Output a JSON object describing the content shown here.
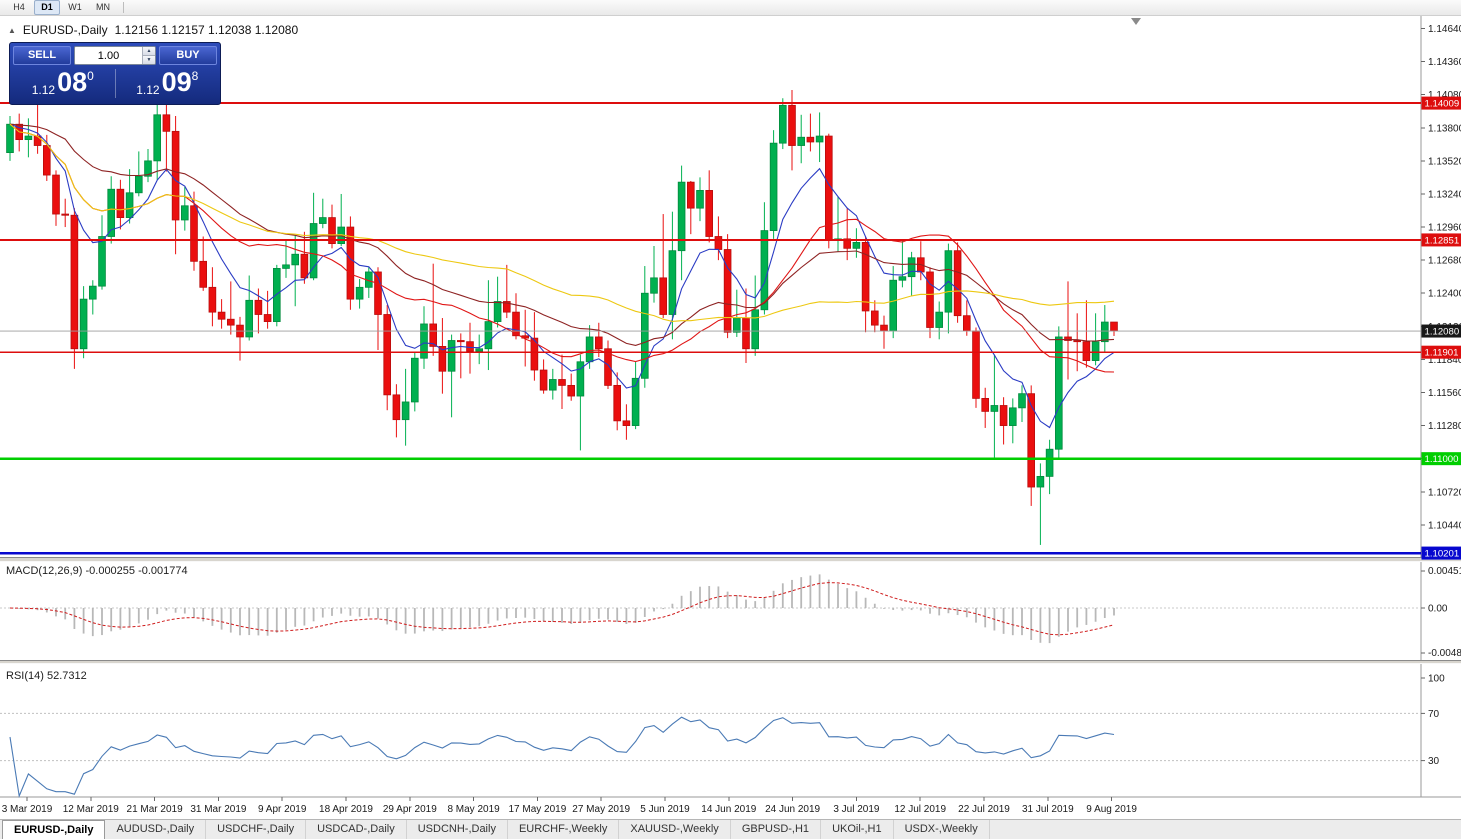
{
  "toolbar": {
    "periods": [
      {
        "label": "H4",
        "active": false
      },
      {
        "label": "D1",
        "active": true
      },
      {
        "label": "W1",
        "active": false
      },
      {
        "label": "MN",
        "active": false
      }
    ]
  },
  "chart_header": {
    "collapse_glyph": "▲",
    "title": "EURUSD-,Daily",
    "quotes": "1.12156 1.12157 1.12038 1.12080"
  },
  "trade_panel": {
    "sell_label": "SELL",
    "buy_label": "BUY",
    "volume": "1.00",
    "sell_price": {
      "prefix": "1.12",
      "big": "08",
      "sup": "0"
    },
    "buy_price": {
      "prefix": "1.12",
      "big": "09",
      "sup": "8"
    }
  },
  "chart_data": {
    "type": "candlestick",
    "symbol": "EURUSD-",
    "timeframe": "Daily",
    "ohlc_format": [
      "open",
      "high",
      "low",
      "close"
    ],
    "ylim": [
      1.10168,
      1.14746
    ],
    "up_color": "#00b050",
    "up_border": "#028a3d",
    "down_color": "#ea0f0f",
    "down_border": "#b80c0c",
    "x_labels": [
      "3 Mar 2019",
      "12 Mar 2019",
      "21 Mar 2019",
      "31 Mar 2019",
      "9 Apr 2019",
      "18 Apr 2019",
      "29 Apr 2019",
      "8 May 2019",
      "17 May 2019",
      "27 May 2019",
      "5 Jun 2019",
      "14 Jun 2019",
      "24 Jun 2019",
      "3 Jul 2019",
      "12 Jul 2019",
      "22 Jul 2019",
      "31 Jul 2019",
      "9 Aug 2019"
    ],
    "y_axis_labels": [
      "1.14640",
      "1.14360",
      "1.14080",
      "1.13800",
      "1.13520",
      "1.13240",
      "1.12960",
      "1.12680",
      "1.12400",
      "1.12120",
      "1.11840",
      "1.11560",
      "1.11280",
      "1.11000",
      "1.10720",
      "1.10440"
    ],
    "hlines": [
      {
        "price": 1.14009,
        "label": "1.14009",
        "color": "#dd0d0d",
        "width": 1.8,
        "type": "resistance"
      },
      {
        "price": 1.12851,
        "label": "1.12851",
        "color": "#dd0d0d",
        "width": 1.8,
        "type": "resistance"
      },
      {
        "price": 1.11901,
        "label": "1.11901",
        "color": "#dd0d0d",
        "width": 1.8,
        "type": "support"
      },
      {
        "price": 1.11,
        "label": "1.11000",
        "color": "#00ce00",
        "width": 2.4,
        "type": "support"
      },
      {
        "price": 1.10201,
        "label": "1.10201",
        "color": "#0707cf",
        "width": 2.4,
        "type": "support"
      }
    ],
    "current_price": {
      "value": 1.1208,
      "label": "1.12080",
      "badge_color": "#181818"
    },
    "moving_averages": [
      {
        "period": 8,
        "method": "ema",
        "color": "#2b3cc4"
      },
      {
        "period": 20,
        "method": "sma",
        "color": "#e01616"
      },
      {
        "period": 34,
        "method": "ema",
        "color": "#8e2323"
      },
      {
        "period": 55,
        "method": "sma",
        "color": "#edc812"
      }
    ],
    "macd": {
      "label": "MACD(12,26,9)",
      "values": "-0.000255 -0.001774",
      "fast": 12,
      "slow": 26,
      "signal": 9,
      "axis_labels": [
        "0.004517",
        "0.00",
        "-0.004806"
      ],
      "histogram_color": "#b8b8b8",
      "signal_color": "#cf1d1d"
    },
    "rsi": {
      "label": "RSI(14)",
      "value": "52.7312",
      "period": 14,
      "levels": [
        70,
        30
      ],
      "axis_labels": [
        "100",
        "70",
        "30"
      ],
      "color": "#4a7ab5"
    },
    "candles": [
      [
        1.1359,
        1.139,
        1.1352,
        1.1383
      ],
      [
        1.1383,
        1.1392,
        1.136,
        1.137
      ],
      [
        1.137,
        1.1388,
        1.1355,
        1.1373
      ],
      [
        1.1373,
        1.141,
        1.1358,
        1.1365
      ],
      [
        1.1365,
        1.1374,
        1.1335,
        1.134
      ],
      [
        1.134,
        1.1344,
        1.1297,
        1.1307
      ],
      [
        1.1307,
        1.132,
        1.1296,
        1.1306
      ],
      [
        1.1306,
        1.1312,
        1.1176,
        1.1193
      ],
      [
        1.1193,
        1.1246,
        1.1185,
        1.1235
      ],
      [
        1.1235,
        1.1251,
        1.1222,
        1.1246
      ],
      [
        1.1246,
        1.1306,
        1.1243,
        1.1288
      ],
      [
        1.1288,
        1.1339,
        1.1282,
        1.1328
      ],
      [
        1.1328,
        1.1336,
        1.1294,
        1.1304
      ],
      [
        1.1304,
        1.1345,
        1.1299,
        1.1325
      ],
      [
        1.1325,
        1.136,
        1.1322,
        1.1339
      ],
      [
        1.1339,
        1.1362,
        1.1334,
        1.1352
      ],
      [
        1.1352,
        1.1401,
        1.1336,
        1.1391
      ],
      [
        1.1391,
        1.1401,
        1.1343,
        1.1377
      ],
      [
        1.1377,
        1.139,
        1.1273,
        1.1302
      ],
      [
        1.1302,
        1.133,
        1.1293,
        1.1314
      ],
      [
        1.1314,
        1.1326,
        1.1259,
        1.1267
      ],
      [
        1.1267,
        1.1288,
        1.1242,
        1.1245
      ],
      [
        1.1245,
        1.1262,
        1.1212,
        1.1224
      ],
      [
        1.1224,
        1.1235,
        1.121,
        1.1218
      ],
      [
        1.1218,
        1.125,
        1.1205,
        1.1213
      ],
      [
        1.1213,
        1.122,
        1.1183,
        1.1203
      ],
      [
        1.1203,
        1.1255,
        1.12,
        1.1234
      ],
      [
        1.1234,
        1.1244,
        1.1206,
        1.1222
      ],
      [
        1.1222,
        1.1242,
        1.121,
        1.1216
      ],
      [
        1.1216,
        1.1264,
        1.1212,
        1.1261
      ],
      [
        1.1261,
        1.1285,
        1.1253,
        1.1264
      ],
      [
        1.1264,
        1.1289,
        1.1229,
        1.1273
      ],
      [
        1.1273,
        1.1292,
        1.1248,
        1.1253
      ],
      [
        1.1253,
        1.1325,
        1.1251,
        1.1299
      ],
      [
        1.1299,
        1.132,
        1.1295,
        1.1304
      ],
      [
        1.1304,
        1.1315,
        1.1278,
        1.1282
      ],
      [
        1.1282,
        1.1324,
        1.128,
        1.1296
      ],
      [
        1.1296,
        1.1305,
        1.1226,
        1.1235
      ],
      [
        1.1235,
        1.1252,
        1.1227,
        1.1245
      ],
      [
        1.1245,
        1.1262,
        1.1236,
        1.1258
      ],
      [
        1.1258,
        1.1262,
        1.1192,
        1.1222
      ],
      [
        1.1222,
        1.123,
        1.1141,
        1.1154
      ],
      [
        1.1154,
        1.1163,
        1.1118,
        1.1133
      ],
      [
        1.1133,
        1.1176,
        1.1111,
        1.1148
      ],
      [
        1.1148,
        1.119,
        1.114,
        1.1185
      ],
      [
        1.1185,
        1.1229,
        1.1176,
        1.1214
      ],
      [
        1.1214,
        1.1265,
        1.1187,
        1.1195
      ],
      [
        1.1195,
        1.1219,
        1.1155,
        1.1174
      ],
      [
        1.1174,
        1.1205,
        1.1135,
        1.12
      ],
      [
        1.12,
        1.1206,
        1.1168,
        1.1199
      ],
      [
        1.1199,
        1.1215,
        1.1172,
        1.1191
      ],
      [
        1.1191,
        1.1205,
        1.118,
        1.1193
      ],
      [
        1.1193,
        1.1251,
        1.1175,
        1.1216
      ],
      [
        1.1216,
        1.1254,
        1.1211,
        1.1233
      ],
      [
        1.1233,
        1.1264,
        1.1219,
        1.1224
      ],
      [
        1.1224,
        1.124,
        1.1201,
        1.1204
      ],
      [
        1.1204,
        1.1226,
        1.1178,
        1.1202
      ],
      [
        1.1202,
        1.1224,
        1.1166,
        1.1175
      ],
      [
        1.1175,
        1.1184,
        1.1155,
        1.1158
      ],
      [
        1.1158,
        1.1176,
        1.115,
        1.1167
      ],
      [
        1.1167,
        1.1188,
        1.1142,
        1.1162
      ],
      [
        1.1162,
        1.1172,
        1.1149,
        1.1153
      ],
      [
        1.1153,
        1.1188,
        1.1107,
        1.1182
      ],
      [
        1.1182,
        1.1213,
        1.1176,
        1.1203
      ],
      [
        1.1203,
        1.1215,
        1.1186,
        1.1193
      ],
      [
        1.1193,
        1.12,
        1.1159,
        1.1162
      ],
      [
        1.1162,
        1.1173,
        1.1124,
        1.1132
      ],
      [
        1.1132,
        1.1146,
        1.1116,
        1.1128
      ],
      [
        1.1128,
        1.1182,
        1.1125,
        1.1168
      ],
      [
        1.1168,
        1.1263,
        1.116,
        1.124
      ],
      [
        1.124,
        1.128,
        1.1232,
        1.1253
      ],
      [
        1.1253,
        1.1307,
        1.1219,
        1.1222
      ],
      [
        1.1222,
        1.1309,
        1.1201,
        1.1276
      ],
      [
        1.1276,
        1.1348,
        1.1251,
        1.1334
      ],
      [
        1.1334,
        1.1335,
        1.129,
        1.1312
      ],
      [
        1.1312,
        1.1338,
        1.1301,
        1.1327
      ],
      [
        1.1327,
        1.1344,
        1.1283,
        1.1288
      ],
      [
        1.1288,
        1.1305,
        1.1268,
        1.1277
      ],
      [
        1.1277,
        1.129,
        1.1202,
        1.1207
      ],
      [
        1.1207,
        1.1243,
        1.1203,
        1.1219
      ],
      [
        1.1219,
        1.1244,
        1.1181,
        1.1193
      ],
      [
        1.1193,
        1.1255,
        1.1187,
        1.1226
      ],
      [
        1.1226,
        1.1317,
        1.1222,
        1.1293
      ],
      [
        1.1293,
        1.1378,
        1.1286,
        1.1367
      ],
      [
        1.1367,
        1.1405,
        1.1362,
        1.1399
      ],
      [
        1.1399,
        1.1412,
        1.1344,
        1.1365
      ],
      [
        1.1365,
        1.1391,
        1.135,
        1.1372
      ],
      [
        1.1372,
        1.1392,
        1.136,
        1.1368
      ],
      [
        1.1368,
        1.1393,
        1.1351,
        1.1373
      ],
      [
        1.1373,
        1.1375,
        1.1278,
        1.1285
      ],
      [
        1.1285,
        1.1322,
        1.1275,
        1.1286
      ],
      [
        1.1286,
        1.1312,
        1.1268,
        1.1278
      ],
      [
        1.1278,
        1.1295,
        1.127,
        1.1283
      ],
      [
        1.1283,
        1.1288,
        1.1207,
        1.1225
      ],
      [
        1.1225,
        1.1234,
        1.1207,
        1.1213
      ],
      [
        1.1213,
        1.1221,
        1.1193,
        1.1208
      ],
      [
        1.1208,
        1.1263,
        1.1202,
        1.1251
      ],
      [
        1.1251,
        1.1285,
        1.1245,
        1.1254
      ],
      [
        1.1254,
        1.1275,
        1.1238,
        1.127
      ],
      [
        1.127,
        1.1284,
        1.1251,
        1.1258
      ],
      [
        1.1258,
        1.1262,
        1.1202,
        1.1211
      ],
      [
        1.1211,
        1.1233,
        1.1201,
        1.1224
      ],
      [
        1.1224,
        1.1282,
        1.1206,
        1.1276
      ],
      [
        1.1276,
        1.1283,
        1.1215,
        1.1221
      ],
      [
        1.1221,
        1.1234,
        1.1204,
        1.1208
      ],
      [
        1.1208,
        1.1211,
        1.1143,
        1.1151
      ],
      [
        1.1151,
        1.116,
        1.1126,
        1.114
      ],
      [
        1.114,
        1.1188,
        1.1101,
        1.1145
      ],
      [
        1.1145,
        1.1152,
        1.1112,
        1.1128
      ],
      [
        1.1128,
        1.1151,
        1.1113,
        1.1143
      ],
      [
        1.1143,
        1.1162,
        1.1131,
        1.1155
      ],
      [
        1.1155,
        1.1162,
        1.106,
        1.1076
      ],
      [
        1.1076,
        1.1096,
        1.1027,
        1.1085
      ],
      [
        1.1085,
        1.1116,
        1.107,
        1.1108
      ],
      [
        1.1108,
        1.1212,
        1.1101,
        1.1203
      ],
      [
        1.1203,
        1.125,
        1.1167,
        1.12
      ],
      [
        1.12,
        1.1223,
        1.1174,
        1.1199
      ],
      [
        1.1199,
        1.1234,
        1.1177,
        1.1183
      ],
      [
        1.1183,
        1.1223,
        1.1179,
        1.1199
      ],
      [
        1.1199,
        1.123,
        1.119,
        1.12156
      ],
      [
        1.12156,
        1.12157,
        1.12038,
        1.1208
      ]
    ]
  },
  "tabs": {
    "items": [
      {
        "label": "EURUSD-,Daily",
        "active": true
      },
      {
        "label": "AUDUSD-,Daily",
        "active": false
      },
      {
        "label": "USDCHF-,Daily",
        "active": false
      },
      {
        "label": "USDCAD-,Daily",
        "active": false
      },
      {
        "label": "USDCNH-,Daily",
        "active": false
      },
      {
        "label": "EURCHF-,Weekly",
        "active": false
      },
      {
        "label": "XAUUSD-,Weekly",
        "active": false
      },
      {
        "label": "GBPUSD-,H1",
        "active": false
      },
      {
        "label": "UKOil-,H1",
        "active": false
      },
      {
        "label": "USDX-,Weekly",
        "active": false
      }
    ]
  }
}
